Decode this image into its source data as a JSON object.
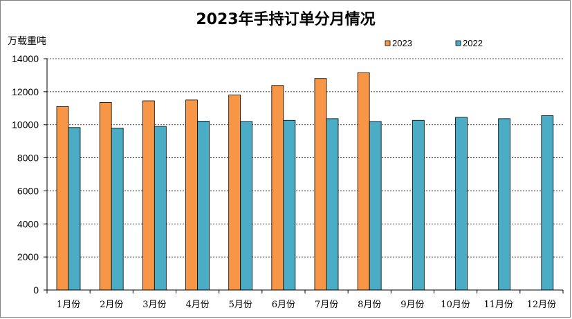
{
  "chart_data": {
    "type": "bar",
    "title": "2023年手持订单分月情况",
    "ylabel": "万载重吨",
    "xlabel": "",
    "categories": [
      "1月份",
      "2月份",
      "3月份",
      "4月份",
      "5月份",
      "6月份",
      "7月份",
      "8月份",
      "9月份",
      "10月份",
      "11月份",
      "12月份"
    ],
    "series": [
      {
        "name": "2023",
        "color": "#f79646",
        "values": [
          11100,
          11350,
          11450,
          11500,
          11800,
          12380,
          12800,
          13150,
          null,
          null,
          null,
          null
        ]
      },
      {
        "name": "2022",
        "color": "#4bacc6",
        "values": [
          9830,
          9800,
          9900,
          10220,
          10200,
          10270,
          10370,
          10200,
          10270,
          10450,
          10370,
          10550
        ]
      }
    ],
    "ylim": [
      0,
      14000
    ],
    "yticks": [
      0,
      2000,
      4000,
      6000,
      8000,
      10000,
      12000,
      14000
    ],
    "grid": true,
    "legend_position": "top-right"
  }
}
